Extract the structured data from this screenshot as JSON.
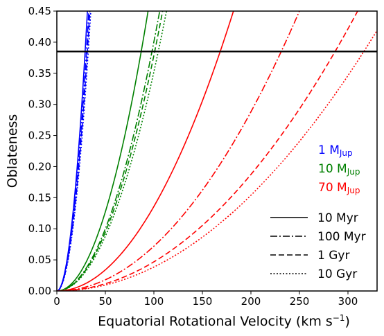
{
  "chart_data": {
    "type": "line",
    "xlabel": "Equatorial Rotational Velocity (km s",
    "xlabel_sup": "−1",
    "xlabel_close": ")",
    "ylabel": "Oblateness",
    "xlim": [
      0,
      330
    ],
    "ylim": [
      0.0,
      0.45
    ],
    "xticks": [
      0,
      50,
      100,
      150,
      200,
      250,
      300
    ],
    "yticks": [
      0.0,
      0.05,
      0.1,
      0.15,
      0.2,
      0.25,
      0.3,
      0.35,
      0.4,
      0.45
    ],
    "yticklabels": [
      "0.00",
      "0.05",
      "0.10",
      "0.15",
      "0.20",
      "0.25",
      "0.30",
      "0.35",
      "0.40",
      "0.45"
    ],
    "grid": false,
    "reference_line": {
      "orientation": "horizontal",
      "y": 0.385,
      "color": "#000000"
    },
    "series": [
      {
        "mass": "1 M_Jup",
        "age": "10 Myr",
        "color": "#0000ff",
        "dash": "solid",
        "v_at_0_45": 31.5
      },
      {
        "mass": "1 M_Jup",
        "age": "100 Myr",
        "color": "#0000ff",
        "dash": "dashdot",
        "v_at_0_45": 33.0
      },
      {
        "mass": "1 M_Jup",
        "age": "1 Gyr",
        "color": "#0000ff",
        "dash": "dashed",
        "v_at_0_45": 34.0
      },
      {
        "mass": "1 M_Jup",
        "age": "10 Gyr",
        "color": "#0000ff",
        "dash": "dotted",
        "v_at_0_45": 35.0
      },
      {
        "mass": "10 M_Jup",
        "age": "10 Myr",
        "color": "#008000",
        "dash": "solid",
        "v_at_0_45": 94.0
      },
      {
        "mass": "10 M_Jup",
        "age": "100 Myr",
        "color": "#008000",
        "dash": "dashdot",
        "v_at_0_45": 106.0
      },
      {
        "mass": "10 M_Jup",
        "age": "1 Gyr",
        "color": "#008000",
        "dash": "dashed",
        "v_at_0_45": 109.0
      },
      {
        "mass": "10 M_Jup",
        "age": "10 Gyr",
        "color": "#008000",
        "dash": "dotted",
        "v_at_0_45": 113.0
      },
      {
        "mass": "70 M_Jup",
        "age": "10 Myr",
        "color": "#ff0000",
        "dash": "solid",
        "v_at_0_45": 182.0
      },
      {
        "mass": "70 M_Jup",
        "age": "100 Myr",
        "color": "#ff0000",
        "dash": "dashdot",
        "v_at_0_45": 250.0
      },
      {
        "mass": "70 M_Jup",
        "age": "1 Gyr",
        "color": "#ff0000",
        "dash": "dashed",
        "v_at_0_45": 310.0
      },
      {
        "mass": "70 M_Jup",
        "age": "10 Gyr",
        "color": "#ff0000",
        "dash": "dotted",
        "v_at_0_45": 342.0
      }
    ],
    "mass_legend": [
      {
        "num": "1 M",
        "sub": "Jup",
        "color": "#0000ff"
      },
      {
        "num": "10 M",
        "sub": "Jup",
        "color": "#008000"
      },
      {
        "num": "70 M",
        "sub": "Jup",
        "color": "#ff0000"
      }
    ],
    "style_legend": [
      {
        "label": "10 Myr",
        "dash": "solid"
      },
      {
        "label": "100 Myr",
        "dash": "dashdot"
      },
      {
        "label": "1 Gyr",
        "dash": "dashed"
      },
      {
        "label": "10 Gyr",
        "dash": "dotted"
      }
    ],
    "legend_placement": "right"
  }
}
